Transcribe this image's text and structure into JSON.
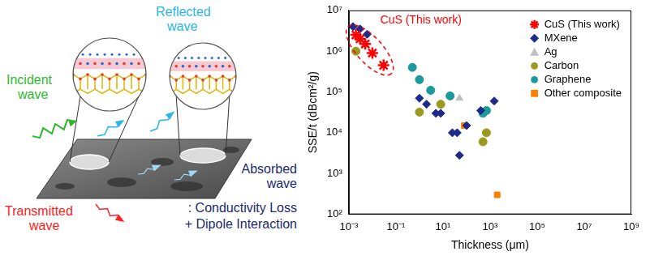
{
  "diagram": {
    "reflected": "Reflected wave",
    "incident": "Incident wave",
    "transmitted": "Transmitted wave",
    "absorbed": "Absorbed wave",
    "absorbed_causes": [
      ": Conductivity Loss",
      "+ Dipole Interaction"
    ]
  },
  "chart_data": {
    "type": "scatter",
    "log": true,
    "grid": false,
    "legend": "upper right",
    "x_label": "Thickness (μm)",
    "y_label": "SSE/t (dBcm²/g)",
    "annotations": [
      "CuS (This work)"
    ],
    "xlim": [
      0.001,
      1000000000
    ],
    "xticks": [
      {
        "value": 0.001,
        "label": "10⁻³"
      },
      {
        "value": 0.1,
        "label": "10⁻¹"
      },
      {
        "value": 10,
        "label": "10¹"
      },
      {
        "value": 1000,
        "label": "10³"
      },
      {
        "value": 100000,
        "label": "10⁵"
      },
      {
        "value": 10000000,
        "label": "10⁷"
      },
      {
        "value": 1000000000,
        "label": "10⁹"
      }
    ],
    "ylim": [
      100,
      10000000
    ],
    "yticks": [
      {
        "value": 100,
        "label": "10²"
      },
      {
        "value": 1000,
        "label": "10³"
      },
      {
        "value": 10000,
        "label": "10⁴"
      },
      {
        "value": 100000,
        "label": "10⁵"
      },
      {
        "value": 1000000,
        "label": "10⁶"
      },
      {
        "value": 10000000,
        "label": "10⁷"
      }
    ],
    "series": [
      {
        "name": "CuS (This work)",
        "color": "#ff0000",
        "marker": "star",
        "x": [
          0.002,
          0.003,
          0.005,
          0.01,
          0.03
        ],
        "values": [
          2500000,
          2000000,
          1500000,
          900000,
          450000
        ]
      },
      {
        "name": "MXene",
        "color": "#1c2a8c",
        "marker": "diamond",
        "x": [
          0.0015,
          0.003,
          0.006,
          1,
          2,
          5,
          8,
          25,
          40,
          50,
          100,
          400,
          1500
        ],
        "values": [
          4000000,
          3500000,
          2600000,
          70000,
          50000,
          30000,
          30000,
          10000,
          10000,
          2800,
          15000,
          35000,
          60000
        ]
      },
      {
        "name": "Ag",
        "color": "#c0c0c0",
        "marker": "triangle",
        "x": [
          50
        ],
        "values": [
          70000
        ]
      },
      {
        "name": "Carbon",
        "color": "#9a9a1e",
        "marker": "circle",
        "x": [
          0.002,
          1,
          8,
          500,
          700
        ],
        "values": [
          1000000,
          32000,
          50000,
          6000,
          10000
        ]
      },
      {
        "name": "Graphene",
        "color": "#1a9a9a",
        "marker": "circle",
        "x": [
          0.5,
          1,
          3,
          20,
          500,
          700
        ],
        "values": [
          400000,
          200000,
          110000,
          80000,
          30000,
          35000
        ]
      },
      {
        "name": "Other composite",
        "color": "#ff8000",
        "marker": "square",
        "x": [
          80,
          2000
        ],
        "values": [
          15000,
          300
        ]
      }
    ]
  }
}
